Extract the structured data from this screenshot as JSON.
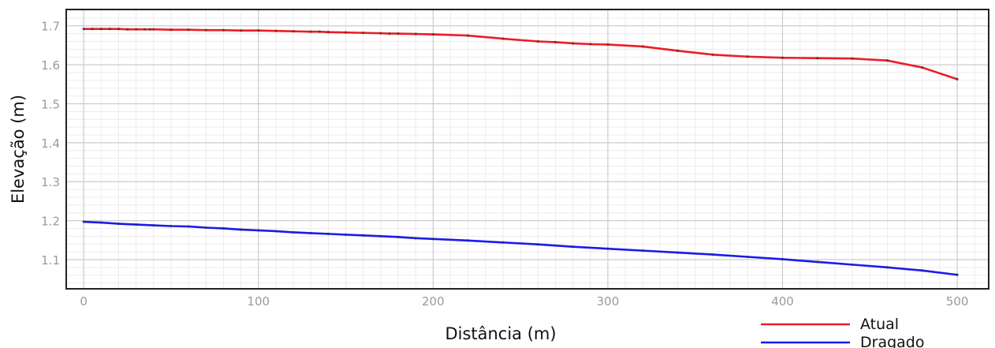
{
  "chart_data": {
    "type": "line",
    "title": "",
    "xlabel": "Distância (m)",
    "ylabel": "Elevação (m)",
    "xlim": [
      -10,
      518
    ],
    "ylim": [
      1.025,
      1.742
    ],
    "x_ticks": [
      0,
      100,
      200,
      300,
      400,
      500
    ],
    "y_ticks": [
      1.1,
      1.2,
      1.3,
      1.4,
      1.5,
      1.6,
      1.7
    ],
    "y_tick_labels": [
      "1.1",
      "1.2",
      "1.3",
      "1.4",
      "1.5",
      "1.6",
      "1.7"
    ],
    "grid": true,
    "legend_position": "bottom-right",
    "series": [
      {
        "name": "Atual",
        "color": "#ee1c24",
        "points": [
          [
            0,
            1.692
          ],
          [
            5,
            1.692
          ],
          [
            10,
            1.692
          ],
          [
            15,
            1.692
          ],
          [
            20,
            1.692
          ],
          [
            25,
            1.691
          ],
          [
            30,
            1.691
          ],
          [
            35,
            1.691
          ],
          [
            38,
            1.691
          ],
          [
            40,
            1.691
          ],
          [
            50,
            1.69
          ],
          [
            60,
            1.69
          ],
          [
            70,
            1.689
          ],
          [
            80,
            1.689
          ],
          [
            90,
            1.688
          ],
          [
            100,
            1.688
          ],
          [
            110,
            1.687
          ],
          [
            120,
            1.686
          ],
          [
            130,
            1.685
          ],
          [
            135,
            1.685
          ],
          [
            140,
            1.684
          ],
          [
            150,
            1.683
          ],
          [
            160,
            1.682
          ],
          [
            170,
            1.681
          ],
          [
            175,
            1.68
          ],
          [
            180,
            1.68
          ],
          [
            190,
            1.679
          ],
          [
            200,
            1.678
          ],
          [
            220,
            1.675
          ],
          [
            240,
            1.667
          ],
          [
            260,
            1.66
          ],
          [
            270,
            1.658
          ],
          [
            280,
            1.655
          ],
          [
            290,
            1.653
          ],
          [
            300,
            1.652
          ],
          [
            320,
            1.647
          ],
          [
            340,
            1.636
          ],
          [
            360,
            1.626
          ],
          [
            380,
            1.621
          ],
          [
            400,
            1.618
          ],
          [
            420,
            1.617
          ],
          [
            440,
            1.616
          ],
          [
            460,
            1.611
          ],
          [
            480,
            1.593
          ],
          [
            500,
            1.563
          ]
        ]
      },
      {
        "name": "Dragado",
        "color": "#1a1aee",
        "points": [
          [
            0,
            1.197
          ],
          [
            10,
            1.195
          ],
          [
            20,
            1.192
          ],
          [
            30,
            1.19
          ],
          [
            40,
            1.188
          ],
          [
            50,
            1.186
          ],
          [
            60,
            1.185
          ],
          [
            70,
            1.182
          ],
          [
            80,
            1.18
          ],
          [
            90,
            1.177
          ],
          [
            100,
            1.175
          ],
          [
            110,
            1.173
          ],
          [
            120,
            1.17
          ],
          [
            130,
            1.168
          ],
          [
            140,
            1.166
          ],
          [
            150,
            1.164
          ],
          [
            160,
            1.162
          ],
          [
            170,
            1.16
          ],
          [
            180,
            1.158
          ],
          [
            190,
            1.155
          ],
          [
            200,
            1.153
          ],
          [
            220,
            1.149
          ],
          [
            240,
            1.144
          ],
          [
            260,
            1.139
          ],
          [
            280,
            1.133
          ],
          [
            300,
            1.128
          ],
          [
            320,
            1.123
          ],
          [
            340,
            1.118
          ],
          [
            360,
            1.113
          ],
          [
            380,
            1.107
          ],
          [
            400,
            1.101
          ],
          [
            420,
            1.094
          ],
          [
            440,
            1.087
          ],
          [
            460,
            1.08
          ],
          [
            480,
            1.072
          ],
          [
            500,
            1.061
          ]
        ]
      }
    ]
  }
}
